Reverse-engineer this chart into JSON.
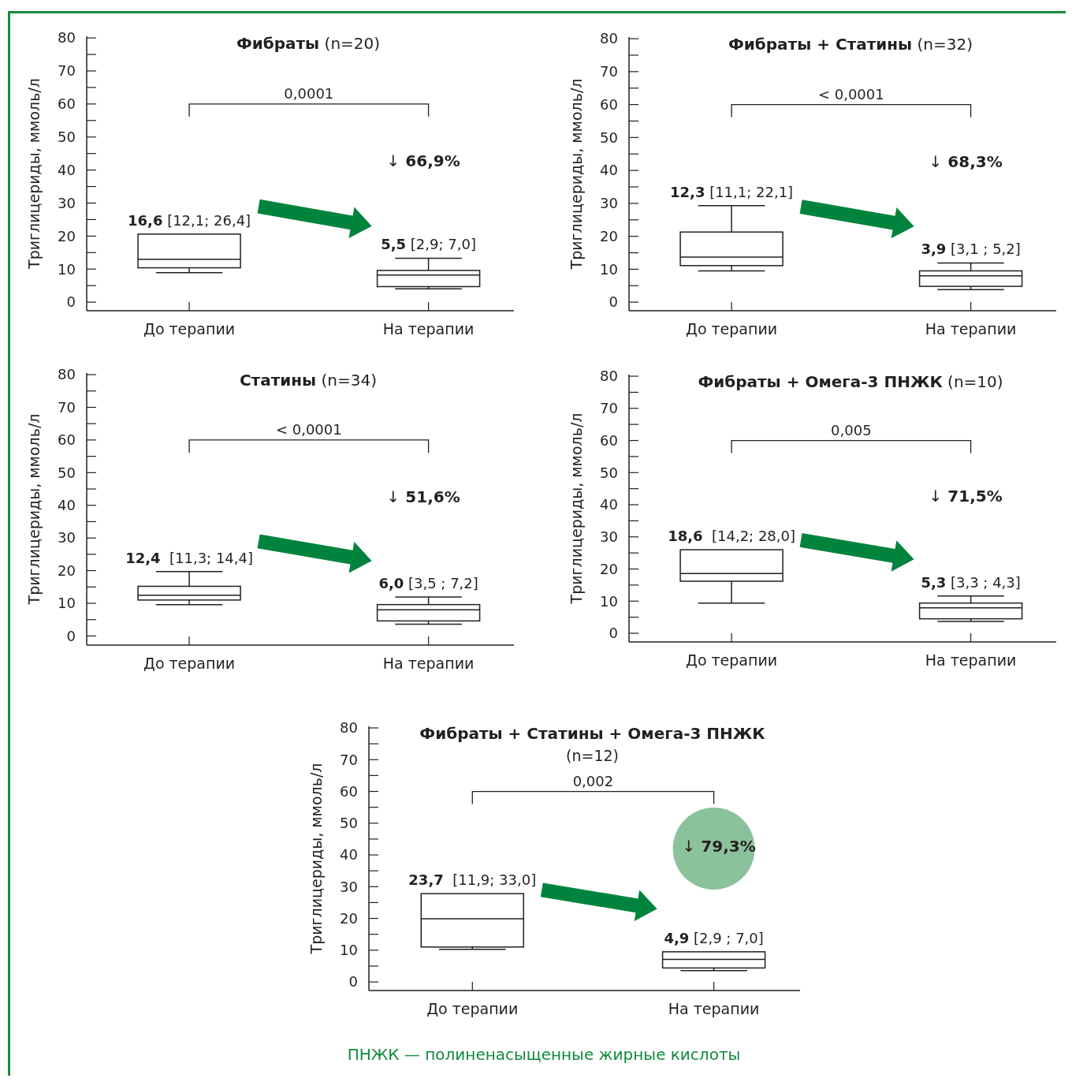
{
  "chart_data": [
    {
      "type": "box",
      "title": "Фибраты (n=20)",
      "ylabel": "Триглицериды, ммоль/л",
      "categories": [
        "До терапии",
        "На терапии"
      ],
      "ylim": [
        -2.6,
        80.5
      ],
      "yticks": [
        0,
        {
          "value": 5,
          "label": null
        },
        10,
        {
          "value": 15,
          "label": null
        },
        20,
        {
          "value": 25,
          "label": null
        },
        30,
        {
          "value": 35,
          "label": null
        },
        40,
        {
          "value": 45,
          "label": null
        },
        50,
        {
          "value": 55,
          "label": null
        },
        60,
        {
          "value": 65,
          "label": null
        },
        70,
        {
          "value": 75,
          "label": null
        },
        80
      ],
      "boxes": [
        {
          "low": 8.9,
          "q1": 10.4,
          "median": 13.0,
          "q3": 20.6,
          "high": 20.6
        },
        {
          "low": 4.0,
          "q1": 4.7,
          "median": 8.2,
          "q3": 9.6,
          "high": 13.3
        }
      ],
      "annotations": [
        "16,6 [12,1; 26,4]",
        "5,5 [2,9; 7,0]",
        "0,0001",
        "↓ 66,9%"
      ]
    },
    {
      "type": "box",
      "title": "Фибраты + Статины (n=32)",
      "ylabel": "Триглицериды, ммоль/л",
      "categories": [
        "До терапии",
        "На терапии"
      ],
      "ylim": [
        -2.6,
        80.5
      ],
      "yticks": [
        0,
        {
          "value": 5,
          "label": null
        },
        10,
        {
          "value": 15,
          "label": null
        },
        20,
        {
          "value": 25,
          "label": null
        },
        30,
        {
          "value": 35,
          "label": null
        },
        40,
        {
          "value": 45,
          "label": null
        },
        50,
        {
          "value": 55,
          "label": null
        },
        60,
        {
          "value": 65,
          "label": null
        },
        70,
        {
          "value": 75,
          "label": null
        },
        80
      ],
      "boxes": [
        {
          "low": 9.5,
          "q1": 11.1,
          "median": 13.7,
          "q3": 21.3,
          "high": 29.3
        },
        {
          "low": 3.8,
          "q1": 4.8,
          "median": 8.0,
          "q3": 9.5,
          "high": 11.9
        }
      ],
      "annotations": [
        "12,3 [11,1; 22,1]",
        "3,9 [3,1 ; 5,2]",
        "< 0,0001",
        "↓ 68,3%"
      ]
    },
    {
      "type": "box",
      "title": "Статины (n=34)",
      "ylabel": "Триглицериды, ммоль/л",
      "categories": [
        "До терапии",
        "На терапии"
      ],
      "ylim": [
        -2.8,
        80.5
      ],
      "yticks": [
        0,
        {
          "value": 5,
          "label": null
        },
        10,
        {
          "value": 15,
          "label": null
        },
        20,
        {
          "value": 25,
          "label": null
        },
        30,
        {
          "value": 35,
          "label": null
        },
        40,
        {
          "value": 45,
          "label": null
        },
        50,
        {
          "value": 55,
          "label": null
        },
        60,
        {
          "value": 65,
          "label": null
        },
        70,
        {
          "value": 75,
          "label": null
        },
        80
      ],
      "boxes": [
        {
          "low": 9.6,
          "q1": 11.0,
          "median": 12.5,
          "q3": 15.2,
          "high": 19.7
        },
        {
          "low": 3.6,
          "q1": 4.6,
          "median": 8.0,
          "q3": 9.6,
          "high": 11.9
        }
      ],
      "annotations": [
        "12,4  [11,3; 14,4]",
        "6,0 [3,5 ; 7,2]",
        "< 0,0001",
        "↓ 51,6%"
      ]
    },
    {
      "type": "box",
      "title": "Фибраты + Омега-3 ПНЖК (n=10)",
      "ylabel": "Триглицериды, ммоль/л",
      "categories": [
        "До терапии",
        "На терапии"
      ],
      "ylim": [
        -2.7,
        80.5
      ],
      "yticks": [
        0,
        {
          "value": 5,
          "label": null
        },
        10,
        {
          "value": 15,
          "label": null
        },
        20,
        {
          "value": 25,
          "label": null
        },
        30,
        {
          "value": 35,
          "label": null
        },
        40,
        {
          "value": 45,
          "label": null
        },
        50,
        {
          "value": 55,
          "label": null
        },
        60,
        {
          "value": 65,
          "label": null
        },
        70,
        {
          "value": 75,
          "label": null
        },
        80
      ],
      "boxes": [
        {
          "low": 9.4,
          "q1": 16.2,
          "median": 18.6,
          "q3": 26.0,
          "high": 26.0
        },
        {
          "low": 3.7,
          "q1": 4.5,
          "median": 7.9,
          "q3": 9.4,
          "high": 11.6
        }
      ],
      "annotations": [
        "18,6  [14,2; 28,0]",
        "5,3 [3,3 ; 4,3]",
        "0,005",
        "↓ 71,5%"
      ]
    },
    {
      "type": "box",
      "title": "Фибраты + Статины + Омега-3 ПНЖК",
      "subtitle": "(n=12)",
      "ylabel": "Триглицериды, ммоль/л",
      "categories": [
        "До терапии",
        "На терапии"
      ],
      "ylim": [
        -2.7,
        80.5
      ],
      "yticks": [
        0,
        {
          "value": 5,
          "label": null
        },
        10,
        {
          "value": 15,
          "label": null
        },
        20,
        {
          "value": 25,
          "label": null
        },
        30,
        {
          "value": 35,
          "label": null
        },
        40,
        {
          "value": 45,
          "label": null
        },
        50,
        {
          "value": 55,
          "label": null
        },
        60,
        {
          "value": 65,
          "label": null
        },
        70,
        {
          "value": 75,
          "label": null
        },
        80
      ],
      "boxes": [
        {
          "low": 10.3,
          "q1": 11.0,
          "median": 19.9,
          "q3": 27.8,
          "high": 27.8
        },
        {
          "low": 3.6,
          "q1": 4.4,
          "median": 7.1,
          "q3": 9.5,
          "high": 9.5
        }
      ],
      "annotations": [
        "23,7  [11,9; 33,0]",
        "4,9 [2,9 ; 7,0]",
        "0,002",
        "↓ 79,3%",
        "ПНЖК — полиненасыщенные жирные кислоты"
      ]
    }
  ]
}
